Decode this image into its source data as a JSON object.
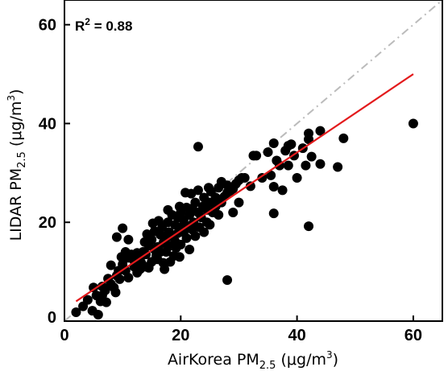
{
  "chart_data": {
    "type": "scatter",
    "title": "",
    "xlabel": {
      "base": "AirKorea PM",
      "sub": "2.5",
      "unit": " (μg/m",
      "unit_sup": "3",
      "close": ")"
    },
    "ylabel": {
      "base": "LIDAR PM",
      "sub": "2.5",
      "unit": " (μg/m",
      "unit_sup": "3",
      "close": ")"
    },
    "xlim": [
      0,
      65
    ],
    "ylim": [
      0,
      65
    ],
    "xticks": [
      0,
      20,
      40,
      60
    ],
    "yticks": [
      0,
      20,
      40,
      60
    ],
    "grid": false,
    "annotation": {
      "prefix": "R",
      "sup": "2",
      "suffix": " = 0.88"
    },
    "reference_line": {
      "style": "dash-dot",
      "color": "#bbbbbb",
      "from": [
        0,
        0
      ],
      "to": [
        65,
        65
      ]
    },
    "fit_line": {
      "color": "#e31a1c",
      "from": [
        2,
        4
      ],
      "to": [
        60,
        50
      ]
    },
    "points": [
      [
        2.0,
        1.8
      ],
      [
        3.2,
        3.0
      ],
      [
        4.0,
        4.3
      ],
      [
        4.8,
        2.1
      ],
      [
        5.5,
        5.2
      ],
      [
        5.0,
        6.8
      ],
      [
        5.8,
        1.3
      ],
      [
        6.5,
        7.0
      ],
      [
        6.2,
        4.0
      ],
      [
        7.0,
        6.2
      ],
      [
        7.5,
        8.6
      ],
      [
        8.0,
        7.5
      ],
      [
        8.0,
        11.3
      ],
      [
        8.5,
        6.8
      ],
      [
        9.0,
        9.2
      ],
      [
        9.3,
        10.2
      ],
      [
        9.0,
        17.0
      ],
      [
        9.5,
        8.5
      ],
      [
        10.0,
        18.8
      ],
      [
        10.0,
        11.5
      ],
      [
        10.5,
        10.2
      ],
      [
        11.0,
        12.8
      ],
      [
        11.0,
        8.8
      ],
      [
        11.5,
        13.5
      ],
      [
        12.0,
        11.0
      ],
      [
        12.0,
        12.2
      ],
      [
        12.5,
        13.8
      ],
      [
        13.0,
        10.5
      ],
      [
        13.0,
        12.6
      ],
      [
        13.5,
        14.0
      ],
      [
        13.2,
        11.8
      ],
      [
        14.0,
        11.0
      ],
      [
        14.0,
        13.5
      ],
      [
        14.2,
        17.6
      ],
      [
        14.5,
        15.3
      ],
      [
        15.0,
        12.0
      ],
      [
        15.0,
        16.5
      ],
      [
        15.5,
        14.5
      ],
      [
        15.5,
        18.2
      ],
      [
        15.8,
        13.3
      ],
      [
        16.0,
        15.0
      ],
      [
        16.0,
        12.5
      ],
      [
        16.5,
        17.5
      ],
      [
        16.5,
        14.0
      ],
      [
        16.8,
        19.0
      ],
      [
        17.0,
        15.8
      ],
      [
        17.0,
        11.8
      ],
      [
        17.2,
        10.5
      ],
      [
        17.5,
        16.8
      ],
      [
        17.5,
        14.0
      ],
      [
        17.8,
        20.0
      ],
      [
        18.0,
        18.0
      ],
      [
        18.0,
        15.2
      ],
      [
        18.2,
        12.0
      ],
      [
        18.5,
        17.2
      ],
      [
        18.5,
        21.5
      ],
      [
        18.8,
        13.2
      ],
      [
        19.0,
        19.5
      ],
      [
        19.0,
        16.2
      ],
      [
        19.2,
        14.8
      ],
      [
        19.5,
        21.0
      ],
      [
        19.5,
        17.8
      ],
      [
        19.8,
        13.0
      ],
      [
        20.0,
        19.0
      ],
      [
        20.0,
        22.0
      ],
      [
        20.0,
        15.5
      ],
      [
        20.5,
        18.0
      ],
      [
        20.5,
        20.5
      ],
      [
        21.0,
        16.8
      ],
      [
        21.0,
        23.0
      ],
      [
        21.2,
        19.2
      ],
      [
        21.5,
        21.5
      ],
      [
        21.5,
        14.5
      ],
      [
        22.0,
        18.5
      ],
      [
        22.0,
        22.8
      ],
      [
        22.2,
        20.0
      ],
      [
        22.5,
        17.2
      ],
      [
        22.5,
        24.0
      ],
      [
        23.0,
        22.0
      ],
      [
        23.0,
        35.3
      ],
      [
        23.0,
        26.5
      ],
      [
        23.2,
        19.0
      ],
      [
        23.5,
        21.0
      ],
      [
        23.8,
        23.2
      ],
      [
        24.0,
        18.0
      ],
      [
        24.0,
        25.0
      ],
      [
        24.5,
        22.5
      ],
      [
        24.5,
        20.0
      ],
      [
        25.0,
        24.0
      ],
      [
        25.0,
        19.5
      ],
      [
        25.2,
        26.2
      ],
      [
        25.5,
        22.0
      ],
      [
        26.0,
        25.0
      ],
      [
        26.0,
        23.2
      ],
      [
        26.5,
        27.0
      ],
      [
        27.0,
        24.0
      ],
      [
        27.0,
        28.2
      ],
      [
        27.5,
        25.2
      ],
      [
        28.0,
        27.5
      ],
      [
        28.0,
        8.3
      ],
      [
        28.5,
        26.3
      ],
      [
        29.0,
        22.0
      ],
      [
        29.5,
        27.8
      ],
      [
        30.0,
        28.5
      ],
      [
        30.5,
        29.0
      ],
      [
        31.0,
        29.0
      ],
      [
        32.0,
        27.3
      ],
      [
        32.5,
        33.5
      ],
      [
        33.0,
        33.5
      ],
      [
        34.0,
        29.0
      ],
      [
        35.0,
        34.2
      ],
      [
        35.5,
        29.5
      ],
      [
        36.0,
        36.0
      ],
      [
        36.0,
        21.8
      ],
      [
        36.0,
        27.2
      ],
      [
        36.5,
        32.5
      ],
      [
        37.0,
        31.5
      ],
      [
        37.5,
        26.5
      ],
      [
        38.0,
        34.5
      ],
      [
        38.5,
        31.5
      ],
      [
        38.5,
        35.5
      ],
      [
        39.0,
        35.8
      ],
      [
        39.5,
        33.5
      ],
      [
        40.0,
        29.0
      ],
      [
        41.0,
        35.0
      ],
      [
        41.5,
        31.5
      ],
      [
        42.0,
        38.0
      ],
      [
        42.0,
        19.2
      ],
      [
        42.0,
        36.8
      ],
      [
        42.5,
        33.3
      ],
      [
        44.0,
        38.5
      ],
      [
        44.0,
        31.8
      ],
      [
        47.0,
        31.2
      ],
      [
        48.0,
        37.0
      ],
      [
        60.0,
        40.0
      ],
      [
        28.0,
        26.0
      ],
      [
        29.0,
        26.8
      ],
      [
        11.0,
        16.5
      ],
      [
        12.5,
        9.8
      ],
      [
        14.5,
        10.8
      ],
      [
        8.8,
        5.8
      ],
      [
        16.2,
        20.3
      ],
      [
        19.8,
        23.2
      ],
      [
        24.8,
        27.0
      ],
      [
        21.8,
        25.8
      ],
      [
        20.8,
        26.0
      ],
      [
        26.5,
        21.5
      ],
      [
        30.0,
        24.0
      ],
      [
        10.5,
        14.0
      ],
      [
        7.2,
        3.8
      ],
      [
        6.5,
        5.2
      ],
      [
        9.8,
        13.0
      ],
      [
        17.8,
        22.5
      ],
      [
        15.2,
        19.8
      ],
      [
        13.8,
        16.0
      ]
    ]
  }
}
